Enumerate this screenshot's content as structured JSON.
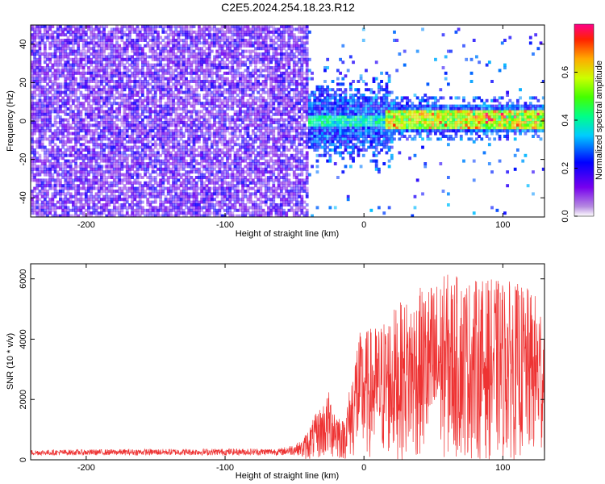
{
  "title": "C2E5.2024.254.18.23.R12",
  "chart_data": [
    {
      "type": "heatmap",
      "xlabel": "Height of straight line (km)",
      "ylabel": "Frequency (Hz)",
      "xlim": [
        -240,
        130
      ],
      "ylim": [
        -50,
        50
      ],
      "xticks": [
        -200,
        -100,
        0,
        100
      ],
      "yticks": [
        -40,
        -20,
        0,
        20,
        40
      ],
      "colorbar": {
        "label": "Normalized spectral amplitude",
        "range": [
          0,
          0.8
        ],
        "ticks": [
          0.0,
          0.2,
          0.4,
          0.6
        ]
      }
    },
    {
      "type": "line",
      "color": "#ee3333",
      "xlabel": "Height of straight line (km)",
      "ylabel": "SNR (10 * v/v)",
      "xlim": [
        -240,
        130
      ],
      "ylim": [
        0,
        6500
      ],
      "xticks": [
        -200,
        -100,
        0,
        100
      ],
      "yticks": [
        0,
        2000,
        4000,
        6000
      ],
      "envelope": {
        "x": [
          -240,
          -150,
          -60,
          -45,
          -35,
          -25,
          -20,
          -15,
          -10,
          -5,
          10,
          20,
          40,
          60,
          80,
          100,
          115,
          130
        ],
        "max": [
          330,
          360,
          380,
          620,
          1500,
          2300,
          1800,
          1300,
          2500,
          4200,
          4500,
          5000,
          5700,
          6200,
          6000,
          6000,
          5800,
          5300
        ]
      }
    }
  ]
}
